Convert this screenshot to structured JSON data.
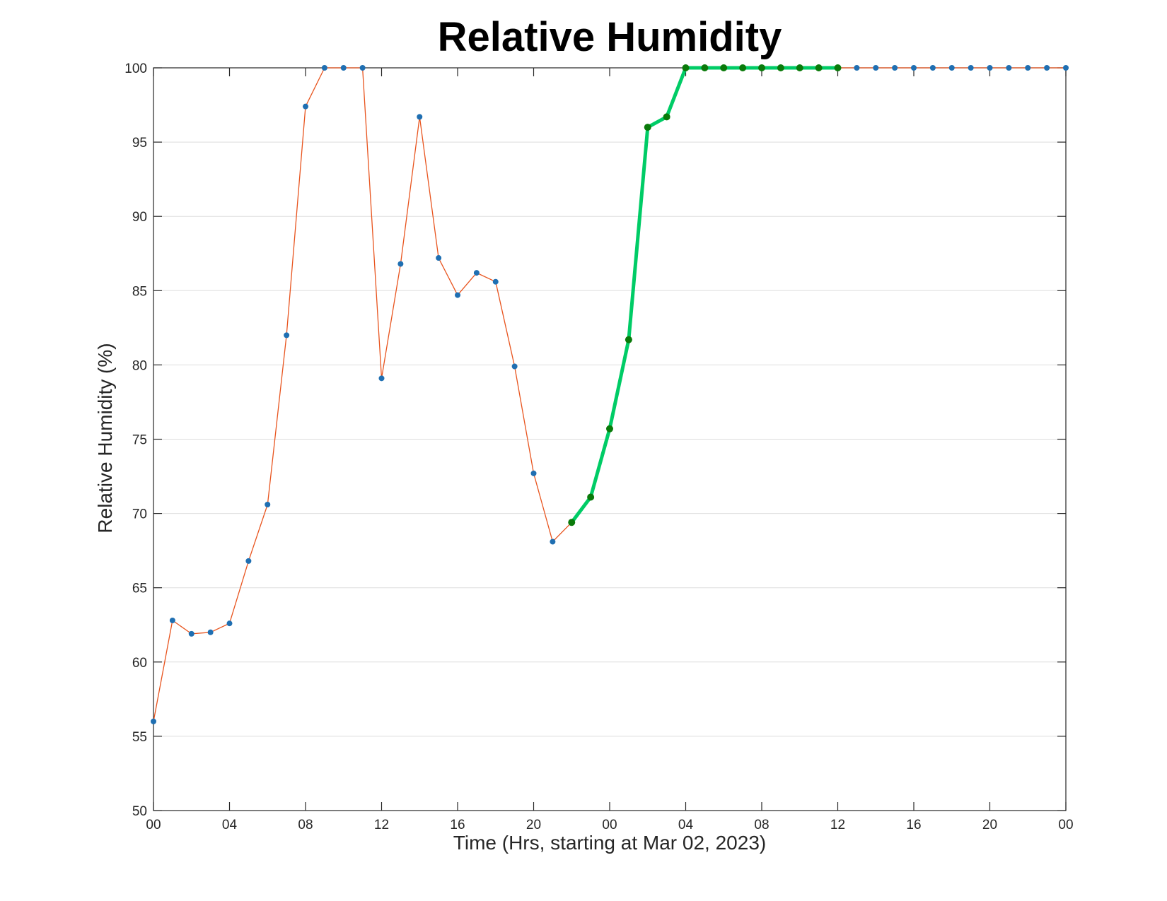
{
  "chart_data": {
    "type": "line",
    "title": "Relative Humidity",
    "xlabel": "Time (Hrs, starting at Mar 02, 2023)",
    "ylabel": "Relative Humidity (%)",
    "xlim": [
      0,
      48
    ],
    "ylim": [
      50,
      100
    ],
    "grid": "horizontal",
    "x_ticks": [
      {
        "value": 0,
        "label": "00"
      },
      {
        "value": 4,
        "label": "04"
      },
      {
        "value": 8,
        "label": "08"
      },
      {
        "value": 12,
        "label": "12"
      },
      {
        "value": 16,
        "label": "16"
      },
      {
        "value": 20,
        "label": "20"
      },
      {
        "value": 24,
        "label": "00"
      },
      {
        "value": 28,
        "label": "04"
      },
      {
        "value": 32,
        "label": "08"
      },
      {
        "value": 36,
        "label": "12"
      },
      {
        "value": 40,
        "label": "16"
      },
      {
        "value": 44,
        "label": "20"
      },
      {
        "value": 48,
        "label": "00"
      }
    ],
    "y_ticks": [
      50,
      55,
      60,
      65,
      70,
      75,
      80,
      85,
      90,
      95,
      100
    ],
    "series": [
      {
        "line_color": "#e8541e",
        "marker_color": "#1f6fb2",
        "x": [
          0,
          1,
          2,
          3,
          4,
          5,
          6,
          7,
          8,
          9,
          10,
          11,
          12,
          13,
          14,
          15,
          16,
          17,
          18,
          19,
          20,
          21,
          22,
          23,
          24,
          25,
          26,
          27,
          28,
          29,
          30,
          31,
          32,
          33,
          34,
          35,
          36,
          37,
          38,
          39,
          40,
          41,
          42,
          43,
          44,
          45,
          46,
          47,
          48
        ],
        "y": [
          56.0,
          62.8,
          61.9,
          62.0,
          62.6,
          66.8,
          70.6,
          82.0,
          97.4,
          100,
          100,
          100,
          79.1,
          86.8,
          96.7,
          87.2,
          84.7,
          86.2,
          85.6,
          79.9,
          72.7,
          68.1,
          69.4,
          71.1,
          75.7,
          81.7,
          96.0,
          96.7,
          100,
          100,
          100,
          100,
          100,
          100,
          100,
          100,
          100,
          100,
          100,
          100,
          100,
          100,
          100,
          100,
          100,
          100,
          100,
          100,
          100
        ]
      },
      {
        "line_color": "#00cc66",
        "marker_color": "#0a7a0a",
        "x": [
          22,
          23,
          24,
          25,
          26,
          27,
          28,
          29,
          30,
          31,
          32,
          33,
          34,
          35,
          36
        ],
        "y": [
          69.4,
          71.1,
          75.7,
          81.7,
          96.0,
          96.7,
          100,
          100,
          100,
          100,
          100,
          100,
          100,
          100,
          100
        ]
      }
    ]
  }
}
